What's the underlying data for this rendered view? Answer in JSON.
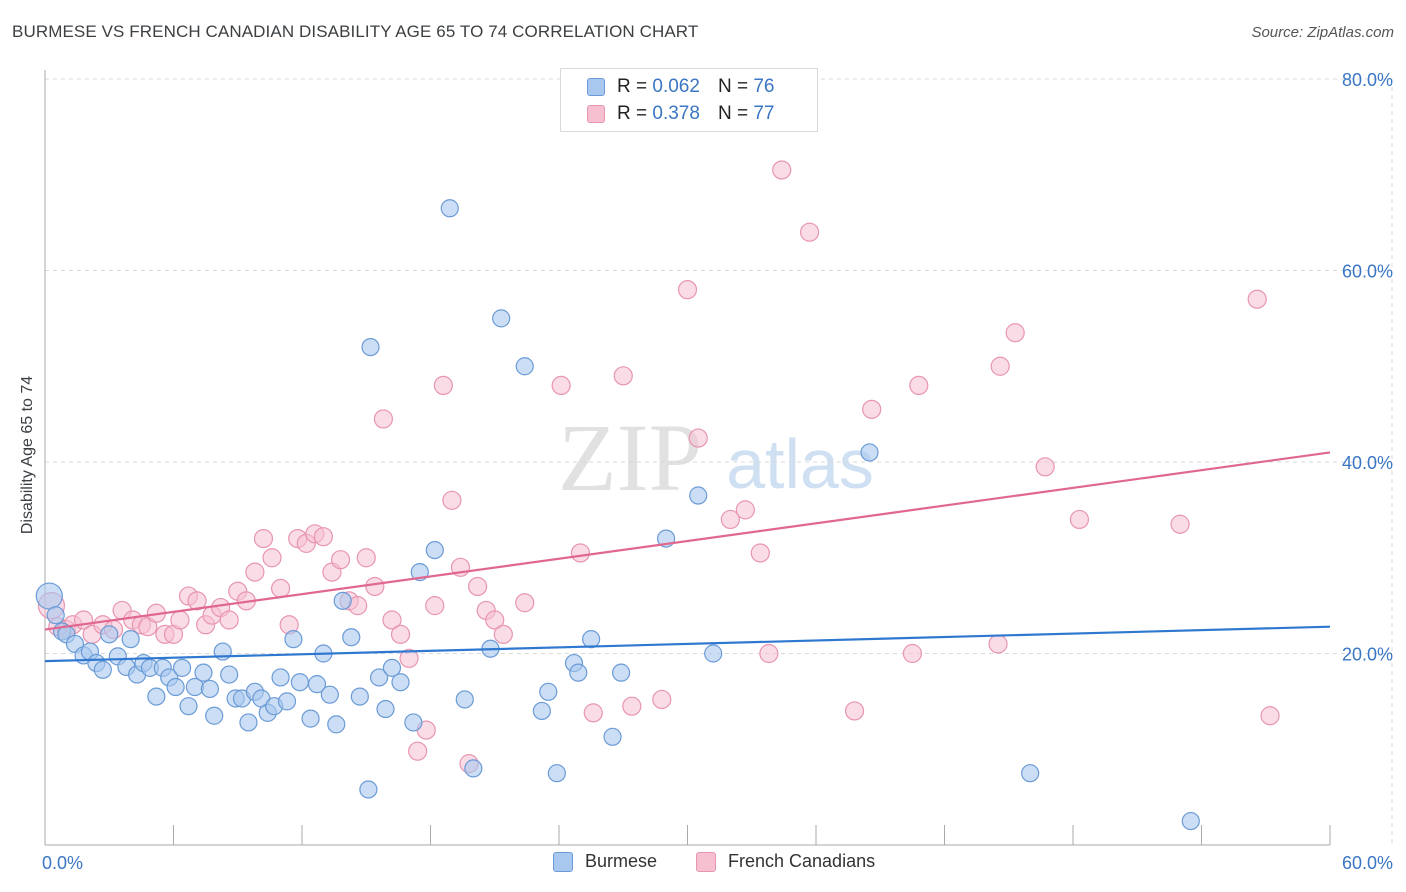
{
  "title": "BURMESE VS FRENCH CANADIAN DISABILITY AGE 65 TO 74 CORRELATION CHART",
  "source": "Source: ZipAtlas.com",
  "watermark": {
    "zip": "ZIP",
    "atlas": "atlas"
  },
  "colors": {
    "burmese_fill": "#a9c8ef",
    "burmese_stroke": "#6b9bd6",
    "burmese_line": "#2f78d0",
    "french_fill": "#f6c0d1",
    "french_stroke": "#e895b0",
    "french_line": "#e0678f",
    "tick_label": "#3a76c4",
    "grid": "#d8d8d8"
  },
  "legend_top": {
    "rows": [
      {
        "r_label": "R =",
        "r_value": "0.062",
        "n_label": "N =",
        "n_value": "76"
      },
      {
        "r_label": "R =",
        "r_value": "0.378",
        "n_label": "N =",
        "n_value": "77"
      }
    ]
  },
  "legend_bottom": {
    "items": [
      "Burmese",
      "French Canadians"
    ]
  },
  "chart_data": {
    "type": "scatter",
    "title": "BURMESE VS FRENCH CANADIAN DISABILITY AGE 65 TO 74 CORRELATION CHART",
    "xlabel": "",
    "ylabel": "Disability Age 65 to 74",
    "xlim": [
      0,
      60
    ],
    "ylim": [
      0,
      84
    ],
    "x_tick_labels": [
      "0.0%",
      "60.0%"
    ],
    "y_ticks": [
      20,
      40,
      60,
      80
    ],
    "y_tick_labels": [
      "20.0%",
      "40.0%",
      "60.0%",
      "80.0%"
    ],
    "grid": "horizontal dashed",
    "legend_position": "top-center",
    "series": [
      {
        "name": "Burmese",
        "r": 0.062,
        "n": 76,
        "trend": {
          "x": [
            0,
            60
          ],
          "y": [
            19.2,
            22.8
          ]
        },
        "points": [
          [
            0.2,
            26.0
          ],
          [
            0.5,
            24.0
          ],
          [
            0.8,
            22.3
          ],
          [
            1.0,
            22.0
          ],
          [
            1.4,
            21.0
          ],
          [
            1.8,
            19.8
          ],
          [
            2.1,
            20.2
          ],
          [
            2.4,
            19.0
          ],
          [
            2.7,
            18.3
          ],
          [
            3.0,
            22.0
          ],
          [
            3.4,
            19.7
          ],
          [
            3.8,
            18.6
          ],
          [
            4.0,
            21.5
          ],
          [
            4.3,
            17.8
          ],
          [
            4.6,
            19.0
          ],
          [
            4.9,
            18.5
          ],
          [
            5.2,
            15.5
          ],
          [
            5.5,
            18.5
          ],
          [
            5.8,
            17.5
          ],
          [
            6.1,
            16.5
          ],
          [
            6.4,
            18.5
          ],
          [
            6.7,
            14.5
          ],
          [
            7.0,
            16.5
          ],
          [
            7.4,
            18.0
          ],
          [
            7.7,
            16.3
          ],
          [
            7.9,
            13.5
          ],
          [
            8.3,
            20.2
          ],
          [
            8.6,
            17.8
          ],
          [
            8.9,
            15.3
          ],
          [
            9.2,
            15.3
          ],
          [
            9.5,
            12.8
          ],
          [
            9.8,
            16.0
          ],
          [
            10.1,
            15.3
          ],
          [
            10.4,
            13.8
          ],
          [
            10.7,
            14.5
          ],
          [
            11.0,
            17.5
          ],
          [
            11.3,
            15.0
          ],
          [
            11.6,
            21.5
          ],
          [
            11.9,
            17.0
          ],
          [
            12.4,
            13.2
          ],
          [
            12.7,
            16.8
          ],
          [
            13.0,
            20.0
          ],
          [
            13.3,
            15.7
          ],
          [
            13.6,
            12.6
          ],
          [
            13.9,
            25.5
          ],
          [
            14.3,
            21.7
          ],
          [
            14.7,
            15.5
          ],
          [
            15.1,
            5.8
          ],
          [
            15.2,
            52.0
          ],
          [
            15.6,
            17.5
          ],
          [
            15.9,
            14.2
          ],
          [
            16.2,
            18.5
          ],
          [
            16.6,
            17.0
          ],
          [
            17.2,
            12.8
          ],
          [
            17.5,
            28.5
          ],
          [
            18.2,
            30.8
          ],
          [
            18.9,
            66.5
          ],
          [
            19.6,
            15.2
          ],
          [
            20.0,
            8.0
          ],
          [
            20.8,
            20.5
          ],
          [
            21.3,
            55.0
          ],
          [
            22.4,
            50.0
          ],
          [
            23.2,
            14.0
          ],
          [
            23.5,
            16.0
          ],
          [
            23.9,
            7.5
          ],
          [
            24.7,
            19.0
          ],
          [
            24.9,
            18.0
          ],
          [
            25.5,
            21.5
          ],
          [
            26.5,
            11.3
          ],
          [
            26.9,
            18.0
          ],
          [
            29.0,
            32.0
          ],
          [
            30.5,
            36.5
          ],
          [
            31.2,
            20.0
          ],
          [
            38.5,
            41.0
          ],
          [
            46.0,
            7.5
          ],
          [
            53.5,
            2.5
          ]
        ]
      },
      {
        "name": "French Canadians",
        "r": 0.378,
        "n": 77,
        "trend": {
          "x": [
            0,
            60
          ],
          "y": [
            22.5,
            41.0
          ]
        },
        "points": [
          [
            0.3,
            25.0
          ],
          [
            0.6,
            22.8
          ],
          [
            1.0,
            22.5
          ],
          [
            1.3,
            23.0
          ],
          [
            1.8,
            23.5
          ],
          [
            2.2,
            22.0
          ],
          [
            2.7,
            23.0
          ],
          [
            3.2,
            22.5
          ],
          [
            3.6,
            24.5
          ],
          [
            4.1,
            23.5
          ],
          [
            4.5,
            23.0
          ],
          [
            4.8,
            22.8
          ],
          [
            5.2,
            24.2
          ],
          [
            5.6,
            22.0
          ],
          [
            6.0,
            22.0
          ],
          [
            6.3,
            23.5
          ],
          [
            6.7,
            26.0
          ],
          [
            7.1,
            25.5
          ],
          [
            7.5,
            23.0
          ],
          [
            7.8,
            24.0
          ],
          [
            8.2,
            24.8
          ],
          [
            8.6,
            23.5
          ],
          [
            9.0,
            26.5
          ],
          [
            9.4,
            25.5
          ],
          [
            9.8,
            28.5
          ],
          [
            10.2,
            32.0
          ],
          [
            10.6,
            30.0
          ],
          [
            11.0,
            26.8
          ],
          [
            11.4,
            23.0
          ],
          [
            11.8,
            32.0
          ],
          [
            12.2,
            31.5
          ],
          [
            12.6,
            32.5
          ],
          [
            13.0,
            32.2
          ],
          [
            13.4,
            28.5
          ],
          [
            13.8,
            29.8
          ],
          [
            14.2,
            25.5
          ],
          [
            14.6,
            25.0
          ],
          [
            15.0,
            30.0
          ],
          [
            15.4,
            27.0
          ],
          [
            15.8,
            44.5
          ],
          [
            16.2,
            23.5
          ],
          [
            16.6,
            22.0
          ],
          [
            17.0,
            19.5
          ],
          [
            17.4,
            9.8
          ],
          [
            17.8,
            12.0
          ],
          [
            18.2,
            25.0
          ],
          [
            18.6,
            48.0
          ],
          [
            19.0,
            36.0
          ],
          [
            19.4,
            29.0
          ],
          [
            19.8,
            8.5
          ],
          [
            20.2,
            27.0
          ],
          [
            20.6,
            24.5
          ],
          [
            21.0,
            23.5
          ],
          [
            21.4,
            22.0
          ],
          [
            22.4,
            25.3
          ],
          [
            24.1,
            48.0
          ],
          [
            25.0,
            30.5
          ],
          [
            25.6,
            13.8
          ],
          [
            27.0,
            49.0
          ],
          [
            27.4,
            14.5
          ],
          [
            28.8,
            15.2
          ],
          [
            30.0,
            58.0
          ],
          [
            30.5,
            42.5
          ],
          [
            32.0,
            34.0
          ],
          [
            32.7,
            35.0
          ],
          [
            33.4,
            30.5
          ],
          [
            33.8,
            20.0
          ],
          [
            34.4,
            70.5
          ],
          [
            35.7,
            64.0
          ],
          [
            37.8,
            14.0
          ],
          [
            38.6,
            45.5
          ],
          [
            44.5,
            21.0
          ],
          [
            44.6,
            50.0
          ],
          [
            45.3,
            53.5
          ],
          [
            46.7,
            39.5
          ],
          [
            48.3,
            34.0
          ],
          [
            53.0,
            33.5
          ]
        ]
      }
    ],
    "extra_pink_points": [
      [
        57.2,
        13.5
      ],
      [
        56.6,
        57.0
      ],
      [
        40.5,
        20.0
      ],
      [
        40.8,
        48.0
      ]
    ]
  }
}
